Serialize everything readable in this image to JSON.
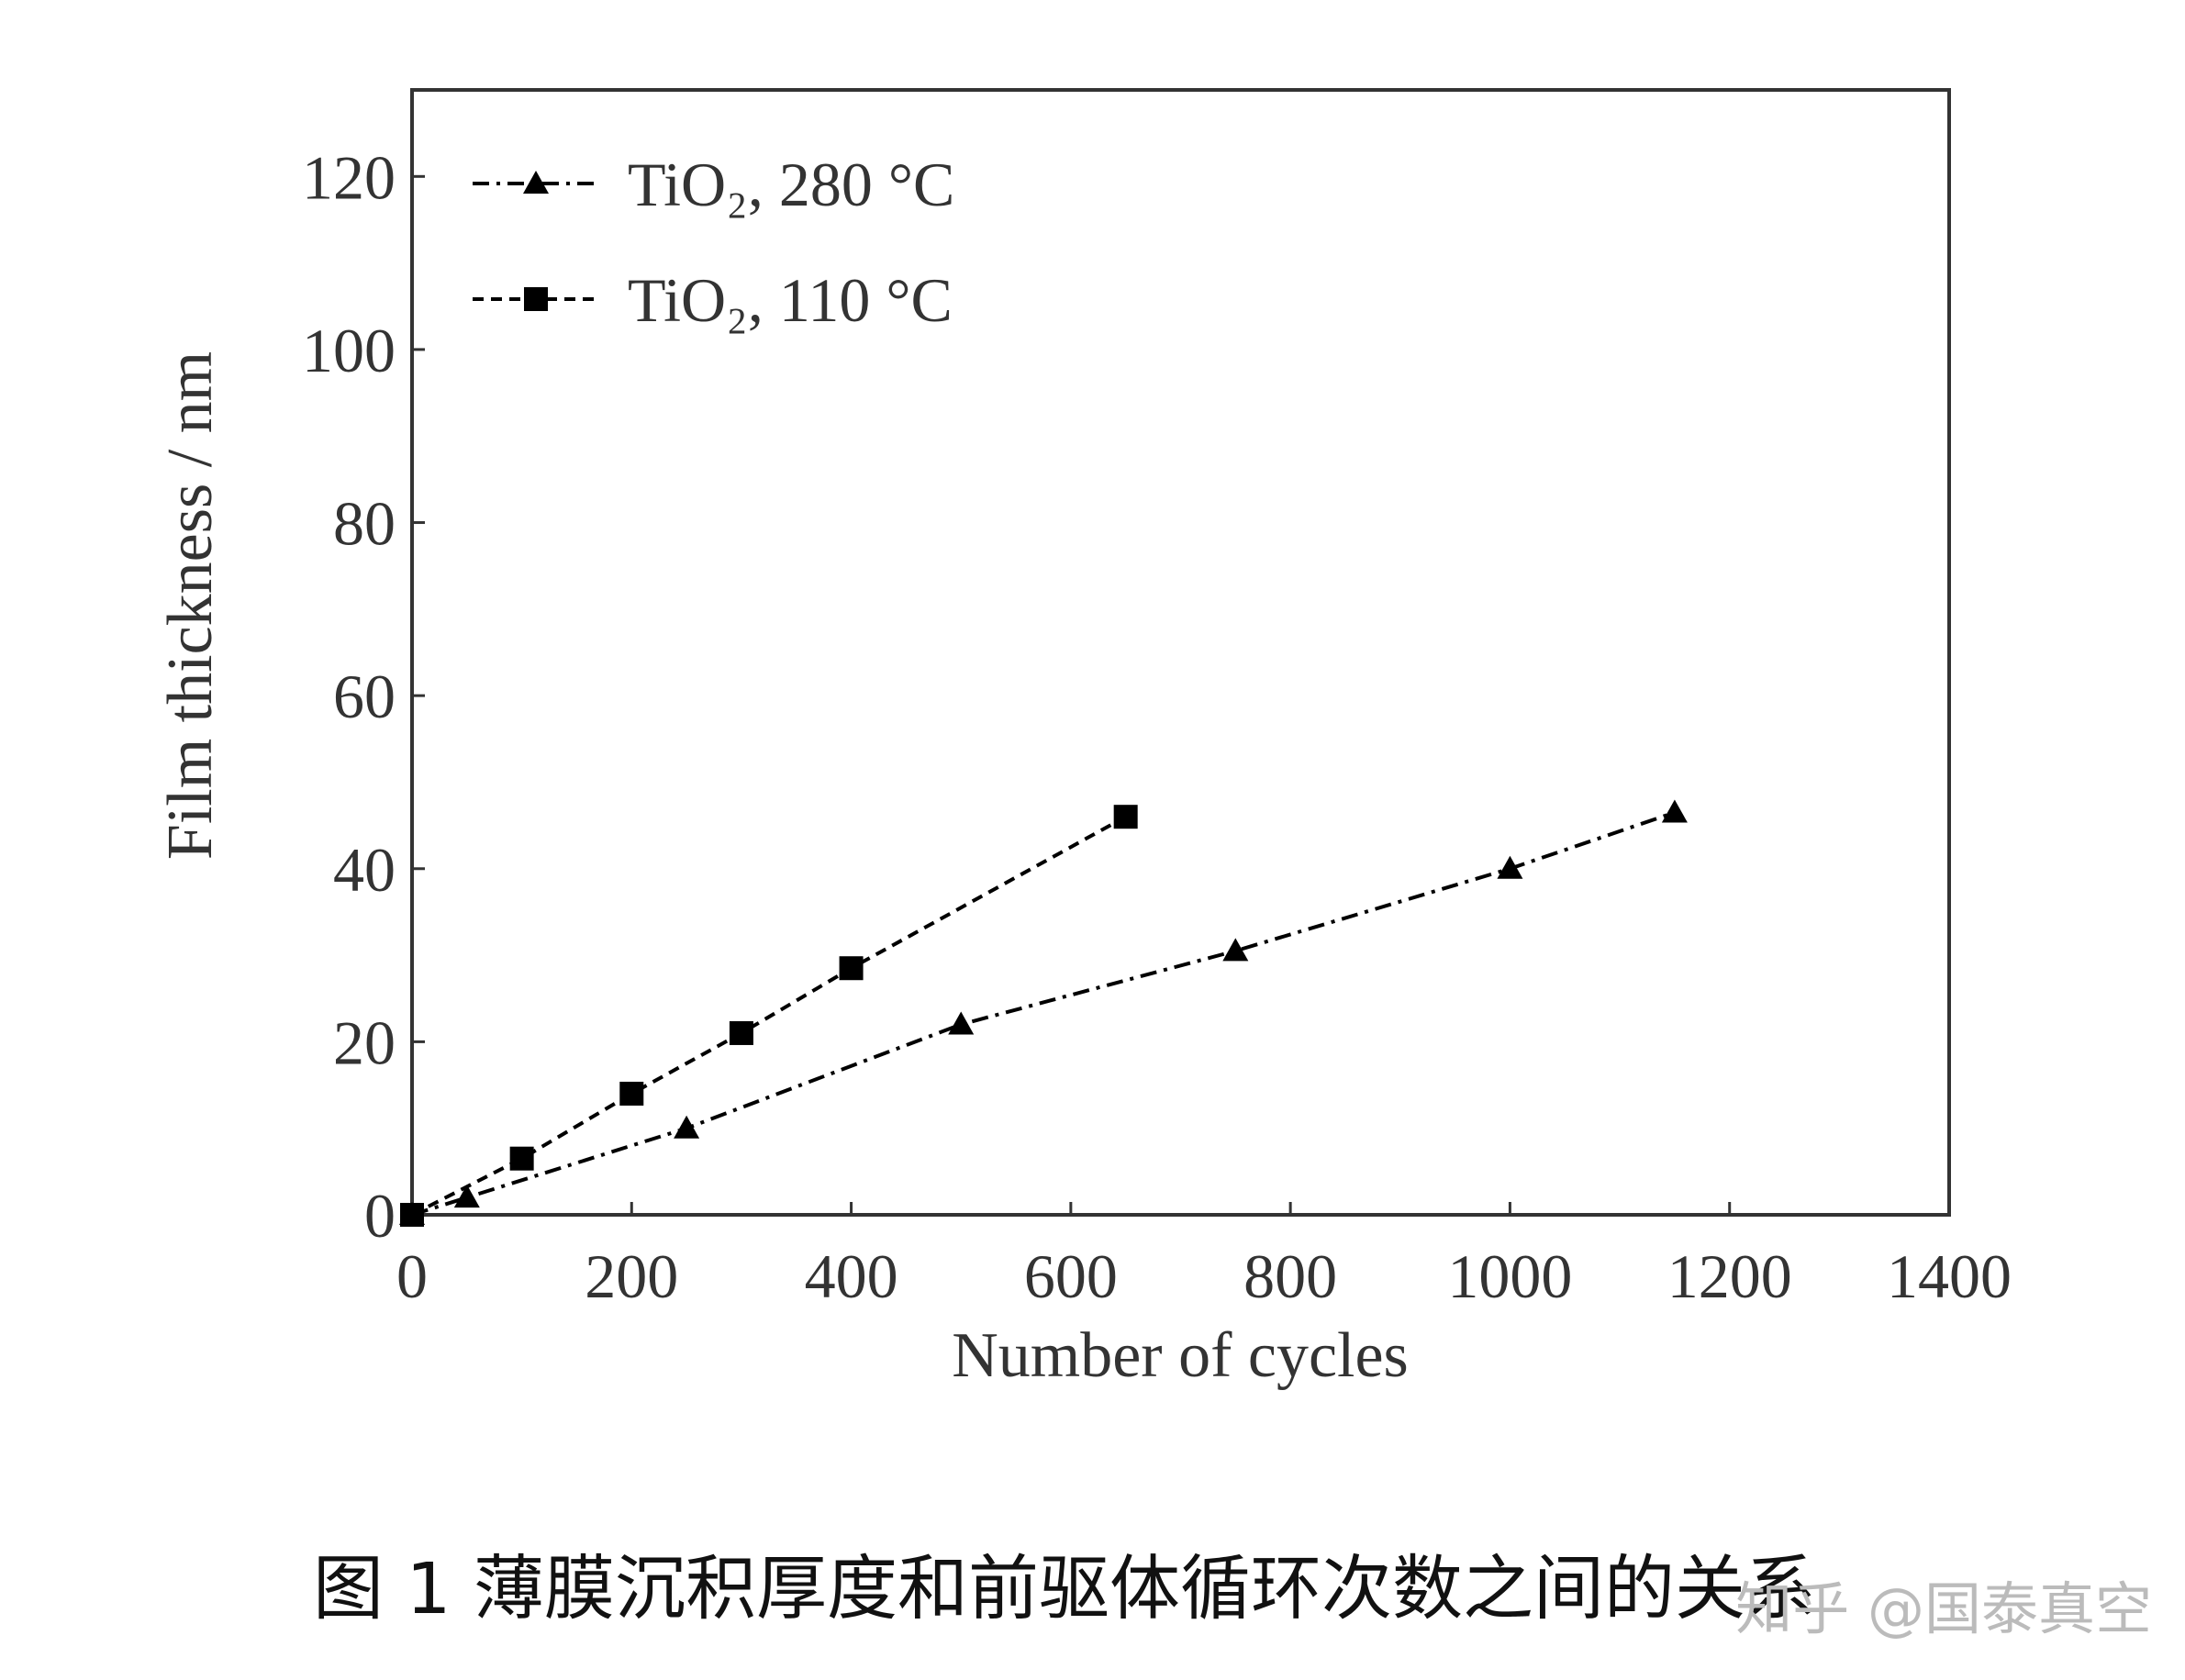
{
  "chart_data": {
    "type": "line",
    "x_label": "Number of cycles",
    "y_label": "Film thickness / nm",
    "xlim": [
      0,
      1400
    ],
    "xticks": [
      0,
      200,
      400,
      600,
      800,
      1000,
      1200,
      1400
    ],
    "ylim": [
      0,
      130
    ],
    "yticks": [
      0,
      20,
      40,
      60,
      80,
      100,
      120
    ],
    "legend": "upper-left",
    "series": [
      {
        "name": "TiO₂, 280 °C",
        "color": "#000000",
        "marker": "triangle",
        "linestyle": "dashdot",
        "x": [
          0,
          50,
          250,
          500,
          750,
          1000,
          1150
        ],
        "values": [
          0,
          2,
          10,
          22,
          30.5,
          40,
          46.5
        ]
      },
      {
        "name": "TiO₂, 110 °C",
        "color": "#000000",
        "marker": "square",
        "linestyle": "dashed",
        "x": [
          0,
          100,
          200,
          300,
          400,
          650
        ],
        "values": [
          0,
          6.5,
          14,
          21,
          28.5,
          46
        ]
      }
    ]
  },
  "caption": "图 1  薄膜沉积厚度和前驱体循环次数之间的关系",
  "watermark": "知乎 @国泰真空"
}
